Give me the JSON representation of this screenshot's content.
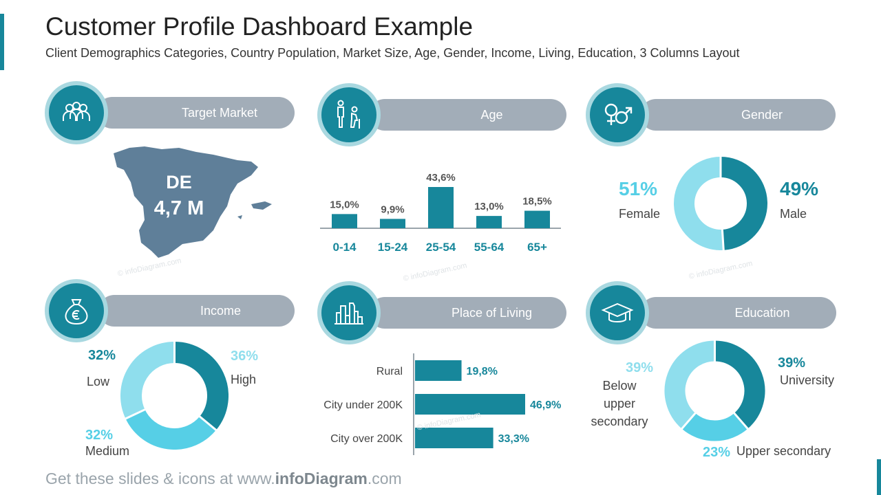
{
  "title": "Customer Profile Dashboard Example",
  "subtitle": "Client Demographics Categories, Country Population, Market Size, Age, Gender, Income, Living, Education, 3 Columns Layout",
  "watermark": "© infoDiagram.com",
  "colors": {
    "accent": "#17879b",
    "light": "#8fdeed",
    "mid": "#56cfe6",
    "pill": "#a2adb8",
    "map": "#5f7f99"
  },
  "sections": {
    "target_market": {
      "label": "Target Market",
      "icon": "people-icon",
      "country": "DE",
      "value": "4,7 M"
    },
    "age": {
      "label": "Age",
      "icon": "age-icon"
    },
    "gender": {
      "label": "Gender",
      "icon": "gender-icon",
      "female_pct": "51%",
      "female_label": "Female",
      "male_pct": "49%",
      "male_label": "Male"
    },
    "income": {
      "label": "Income",
      "icon": "money-bag-icon",
      "low_pct": "32%",
      "low_label": "Low",
      "high_pct": "36%",
      "high_label": "High",
      "medium_pct": "32%",
      "medium_label": "Medium"
    },
    "living": {
      "label": "Place of Living",
      "icon": "city-icon"
    },
    "education": {
      "label": "Education",
      "icon": "graduation-cap-icon",
      "below_pct": "39%",
      "below_label": "Below upper secondary",
      "univ_pct": "39%",
      "univ_label": "University",
      "upper_pct": "23%",
      "upper_label": "Upper secondary"
    }
  },
  "chart_data": [
    {
      "type": "bar",
      "categories": [
        "0-14",
        "15-24",
        "25-54",
        "55-64",
        "65+"
      ],
      "values": [
        15.0,
        9.9,
        43.6,
        13.0,
        18.5
      ],
      "labels": [
        "15,0%",
        "9,9%",
        "43,6%",
        "13,0%",
        "18,5%"
      ]
    },
    {
      "type": "pie",
      "categories": [
        "Female",
        "Male"
      ],
      "values": [
        51,
        49
      ]
    },
    {
      "type": "pie",
      "categories": [
        "Low",
        "High",
        "Medium"
      ],
      "values": [
        32,
        36,
        32
      ]
    },
    {
      "type": "bar",
      "orientation": "horizontal",
      "categories": [
        "Rural",
        "City under 200K",
        "City over 200K"
      ],
      "values": [
        19.8,
        46.9,
        33.3
      ],
      "labels": [
        "19,8%",
        "46,9%",
        "33,3%"
      ]
    },
    {
      "type": "pie",
      "categories": [
        "University",
        "Upper secondary",
        "Below upper secondary"
      ],
      "values": [
        39,
        23,
        39
      ]
    }
  ],
  "footer": {
    "prefix": "Get these slides & icons at www.",
    "brand": "infoDiagram",
    ".com": ".com"
  }
}
